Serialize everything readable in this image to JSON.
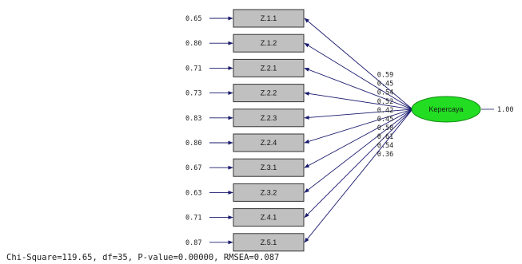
{
  "latent": {
    "label": "Kepercaya",
    "variance": "1.00",
    "fill_color": "#22dd22",
    "stroke_color": "#118811"
  },
  "indicators": [
    {
      "label": "Z.1.1",
      "error": "0.65",
      "loading": "0.59"
    },
    {
      "label": "Z.1.2",
      "error": "0.80",
      "loading": "0.45"
    },
    {
      "label": "Z.2.1",
      "error": "0.71",
      "loading": "0.54"
    },
    {
      "label": "Z.2.2",
      "error": "0.73",
      "loading": "0.52"
    },
    {
      "label": "Z.2.3",
      "error": "0.83",
      "loading": "0.42"
    },
    {
      "label": "Z.2.4",
      "error": "0.80",
      "loading": "0.45"
    },
    {
      "label": "Z.3.1",
      "error": "0.67",
      "loading": "0.58"
    },
    {
      "label": "Z.3.2",
      "error": "0.63",
      "loading": "0.61"
    },
    {
      "label": "Z.4.1",
      "error": "0.71",
      "loading": "0.54"
    },
    {
      "label": "Z.5.1",
      "error": "0.87",
      "loading": "0.36"
    }
  ],
  "fit": {
    "text": "Chi-Square=119.65, df=35, P-value=0.00000, RMSEA=0.087"
  },
  "colors": {
    "box_fill": "#c0c0c0",
    "box_stroke": "#333333",
    "arrow": "#1a1a6e"
  }
}
